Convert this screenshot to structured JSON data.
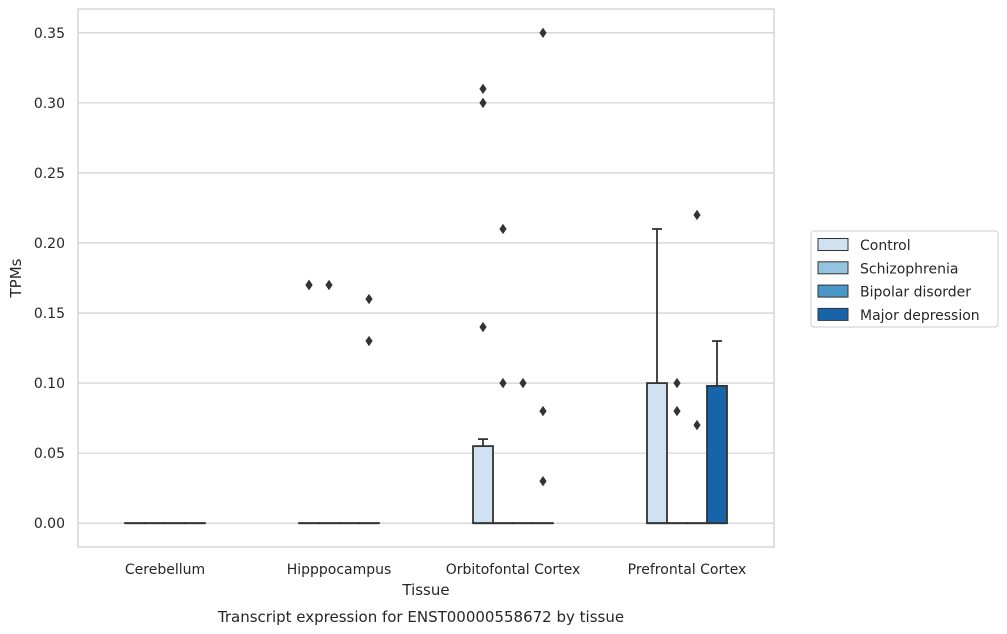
{
  "chart_data": {
    "type": "box",
    "xlabel": "Tissue",
    "ylabel": "TPMs",
    "caption": "Transcript expression for ENST00000558672 by tissue",
    "ylim": [
      -0.017,
      0.367
    ],
    "yticks": [
      "0.00",
      "0.05",
      "0.10",
      "0.15",
      "0.20",
      "0.25",
      "0.30",
      "0.35"
    ],
    "grid": "horizontal",
    "legend_position": "right",
    "categories": [
      "Cerebellum",
      "Hipppocampus",
      "Orbitofontal Cortex",
      "Prefrontal Cortex"
    ],
    "series": [
      {
        "name": "Control",
        "color": "#d0e1f2",
        "boxes": [
          {
            "q1": 0,
            "median": 0,
            "q3": 0,
            "whisker_low": 0,
            "whisker_high": 0,
            "outliers": []
          },
          {
            "q1": 0,
            "median": 0,
            "q3": 0,
            "whisker_low": 0,
            "whisker_high": 0,
            "outliers": [
              0.17,
              0.17
            ]
          },
          {
            "q1": 0,
            "median": 0,
            "q3": 0.055,
            "whisker_low": 0,
            "whisker_high": 0.06,
            "outliers": [
              0.14,
              0.3,
              0.31
            ]
          },
          {
            "q1": 0,
            "median": 0,
            "q3": 0.1,
            "whisker_low": 0,
            "whisker_high": 0.21,
            "outliers": []
          }
        ]
      },
      {
        "name": "Schizophrenia",
        "color": "#94c4df",
        "boxes": [
          {
            "q1": 0,
            "median": 0,
            "q3": 0,
            "whisker_low": 0,
            "whisker_high": 0,
            "outliers": []
          },
          {
            "q1": 0,
            "median": 0,
            "q3": 0,
            "whisker_low": 0,
            "whisker_high": 0,
            "outliers": [
              0.17
            ]
          },
          {
            "q1": 0,
            "median": 0,
            "q3": 0,
            "whisker_low": 0,
            "whisker_high": 0,
            "outliers": [
              0.1,
              0.21
            ]
          },
          {
            "q1": 0,
            "median": 0,
            "q3": 0,
            "whisker_low": 0,
            "whisker_high": 0,
            "outliers": [
              0.08,
              0.1
            ]
          }
        ]
      },
      {
        "name": "Bipolar disorder",
        "color": "#4a98c9",
        "boxes": [
          {
            "q1": 0,
            "median": 0,
            "q3": 0,
            "whisker_low": 0,
            "whisker_high": 0,
            "outliers": []
          },
          {
            "q1": 0,
            "median": 0,
            "q3": 0,
            "whisker_low": 0,
            "whisker_high": 0,
            "outliers": []
          },
          {
            "q1": 0,
            "median": 0,
            "q3": 0,
            "whisker_low": 0,
            "whisker_high": 0,
            "outliers": [
              0.1
            ]
          },
          {
            "q1": 0,
            "median": 0,
            "q3": 0,
            "whisker_low": 0,
            "whisker_high": 0,
            "outliers": [
              0.22,
              0.07
            ]
          }
        ]
      },
      {
        "name": "Major depression",
        "color": "#1764ab",
        "boxes": [
          {
            "q1": 0,
            "median": 0,
            "q3": 0,
            "whisker_low": 0,
            "whisker_high": 0,
            "outliers": []
          },
          {
            "q1": 0,
            "median": 0,
            "q3": 0,
            "whisker_low": 0,
            "whisker_high": 0,
            "outliers": [
              0.13,
              0.16
            ]
          },
          {
            "q1": 0,
            "median": 0,
            "q3": 0,
            "whisker_low": 0,
            "whisker_high": 0,
            "outliers": [
              0.03,
              0.08,
              0.35
            ]
          },
          {
            "q1": 0,
            "median": 0,
            "q3": 0.098,
            "whisker_low": 0,
            "whisker_high": 0.13,
            "outliers": []
          }
        ]
      }
    ]
  }
}
